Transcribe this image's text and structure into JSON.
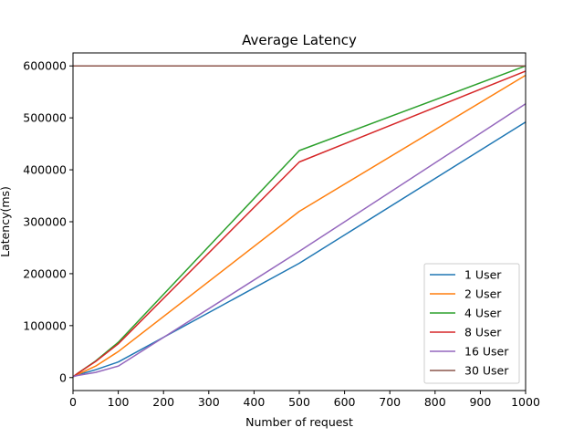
{
  "chart_data": {
    "type": "line",
    "title": "Average Latency",
    "xlabel": "Number of request",
    "ylabel": "Latency(ms)",
    "xlim": [
      0,
      1000
    ],
    "ylim": [
      -25000,
      625000
    ],
    "x_ticks": [
      0,
      100,
      200,
      300,
      400,
      500,
      600,
      700,
      800,
      900,
      1000
    ],
    "x_tick_labels": [
      "0",
      "100",
      "200",
      "300",
      "400",
      "500",
      "600",
      "700",
      "800",
      "900",
      "1000"
    ],
    "y_ticks": [
      0,
      100000,
      200000,
      300000,
      400000,
      500000,
      600000
    ],
    "y_tick_labels": [
      "0",
      "100000",
      "200000",
      "300000",
      "400000",
      "500000",
      "600000"
    ],
    "grid": false,
    "legend_position": "lower-right",
    "series": [
      {
        "name": "1 User",
        "color": "#1f77b4",
        "x": [
          1,
          10,
          50,
          100,
          500,
          1000
        ],
        "y": [
          2000,
          5000,
          15000,
          30000,
          220000,
          492000
        ]
      },
      {
        "name": "2 User",
        "color": "#ff7f0e",
        "x": [
          1,
          10,
          50,
          100,
          500,
          1000
        ],
        "y": [
          2000,
          6000,
          22000,
          50000,
          320000,
          582000
        ]
      },
      {
        "name": "4 User",
        "color": "#2ca02c",
        "x": [
          1,
          10,
          50,
          100,
          500,
          1000
        ],
        "y": [
          2000,
          8000,
          32000,
          68000,
          437000,
          600000
        ]
      },
      {
        "name": "8 User",
        "color": "#d62728",
        "x": [
          1,
          10,
          50,
          100,
          500,
          1000
        ],
        "y": [
          2000,
          8000,
          31000,
          65000,
          415000,
          590000
        ]
      },
      {
        "name": "16 User",
        "color": "#9467bd",
        "x": [
          1,
          10,
          50,
          100,
          500,
          1000
        ],
        "y": [
          2000,
          4000,
          10000,
          22000,
          243000,
          527000
        ]
      },
      {
        "name": "30 User",
        "color": "#8c564b",
        "x": [
          0,
          10,
          50,
          100,
          500,
          1000
        ],
        "y": [
          600000,
          600000,
          600000,
          600000,
          600000,
          600000
        ]
      }
    ]
  }
}
